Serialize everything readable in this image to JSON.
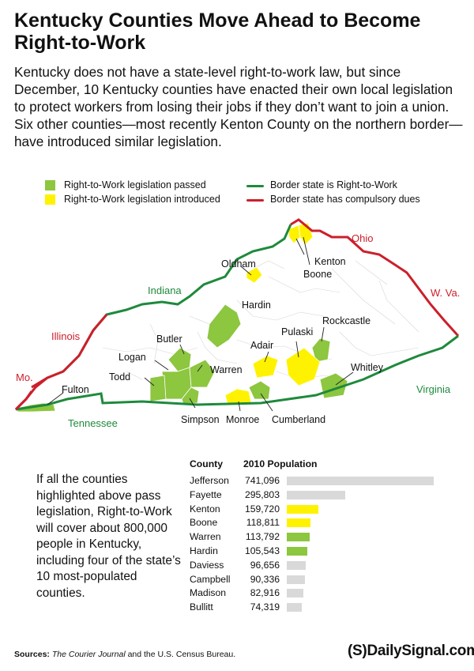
{
  "title": "Kentucky Counties Move Ahead to Become Right-to-Work",
  "intro": "Kentucky does not have a state-level right-to-work law, but since December, 10 Kentucky counties have enacted their own local legislation to protect workers from losing their jobs if they don’t want to join a union. Six other counties—most recently Kenton County on the northern border—have introduced similar legislation.",
  "legend": {
    "passed": "Right-to-Work legislation passed",
    "introduced": "Right-to-Work legislation introduced",
    "border_rtw": "Border state is Right-to-Work",
    "border_dues": "Border state has compulsory dues"
  },
  "colors": {
    "passed": "#8dc63f",
    "introduced": "#fff200",
    "rtw_line": "#1e8a3c",
    "dues_line": "#cc1f2b",
    "bar_default": "#d9d9d9"
  },
  "states": {
    "ohio": "Ohio",
    "indiana": "Indiana",
    "illinois": "Illinois",
    "missouri": "Mo.",
    "west_virginia": "W. Va.",
    "virginia": "Virginia",
    "tennessee": "Tennessee"
  },
  "counties": {
    "kenton": "Kenton",
    "boone": "Boone",
    "oldham": "Oldham",
    "hardin": "Hardin",
    "butler": "Butler",
    "logan": "Logan",
    "todd": "Todd",
    "warren": "Warren",
    "adair": "Adair",
    "pulaski": "Pulaski",
    "rockcastle": "Rockcastle",
    "whitley": "Whitley",
    "fulton": "Fulton",
    "simpson": "Simpson",
    "monroe": "Monroe",
    "cumberland": "Cumberland"
  },
  "note": "If all the counties highlighted above pass legislation, Right-to-Work will cover about 800,000 people in Kentucky, including four of the state’s 10 most-populated counties.",
  "chart_data": {
    "type": "bar",
    "header_county": "County",
    "header_population": "2010 Population",
    "rows": [
      {
        "county": "Jefferson",
        "population": "741,096",
        "value": 741096,
        "status": "none"
      },
      {
        "county": "Fayette",
        "population": "295,803",
        "value": 295803,
        "status": "none"
      },
      {
        "county": "Kenton",
        "population": "159,720",
        "value": 159720,
        "status": "introduced"
      },
      {
        "county": "Boone",
        "population": "118,811",
        "value": 118811,
        "status": "introduced"
      },
      {
        "county": "Warren",
        "population": "113,792",
        "value": 113792,
        "status": "passed"
      },
      {
        "county": "Hardin",
        "population": "105,543",
        "value": 105543,
        "status": "passed"
      },
      {
        "county": "Daviess",
        "population": "96,656",
        "value": 96656,
        "status": "none"
      },
      {
        "county": "Campbell",
        "population": "90,336",
        "value": 90336,
        "status": "none"
      },
      {
        "county": "Madison",
        "population": "82,916",
        "value": 82916,
        "status": "none"
      },
      {
        "county": "Bullitt",
        "population": "74,319",
        "value": 74319,
        "status": "none"
      }
    ]
  },
  "sources_label": "Sources:",
  "sources_text": " The Courier Journal and the U.S. Census Bureau.",
  "sources_italic": "The Courier Journal",
  "logo_mark": "(S)",
  "logo_text": "DailySignal.com"
}
